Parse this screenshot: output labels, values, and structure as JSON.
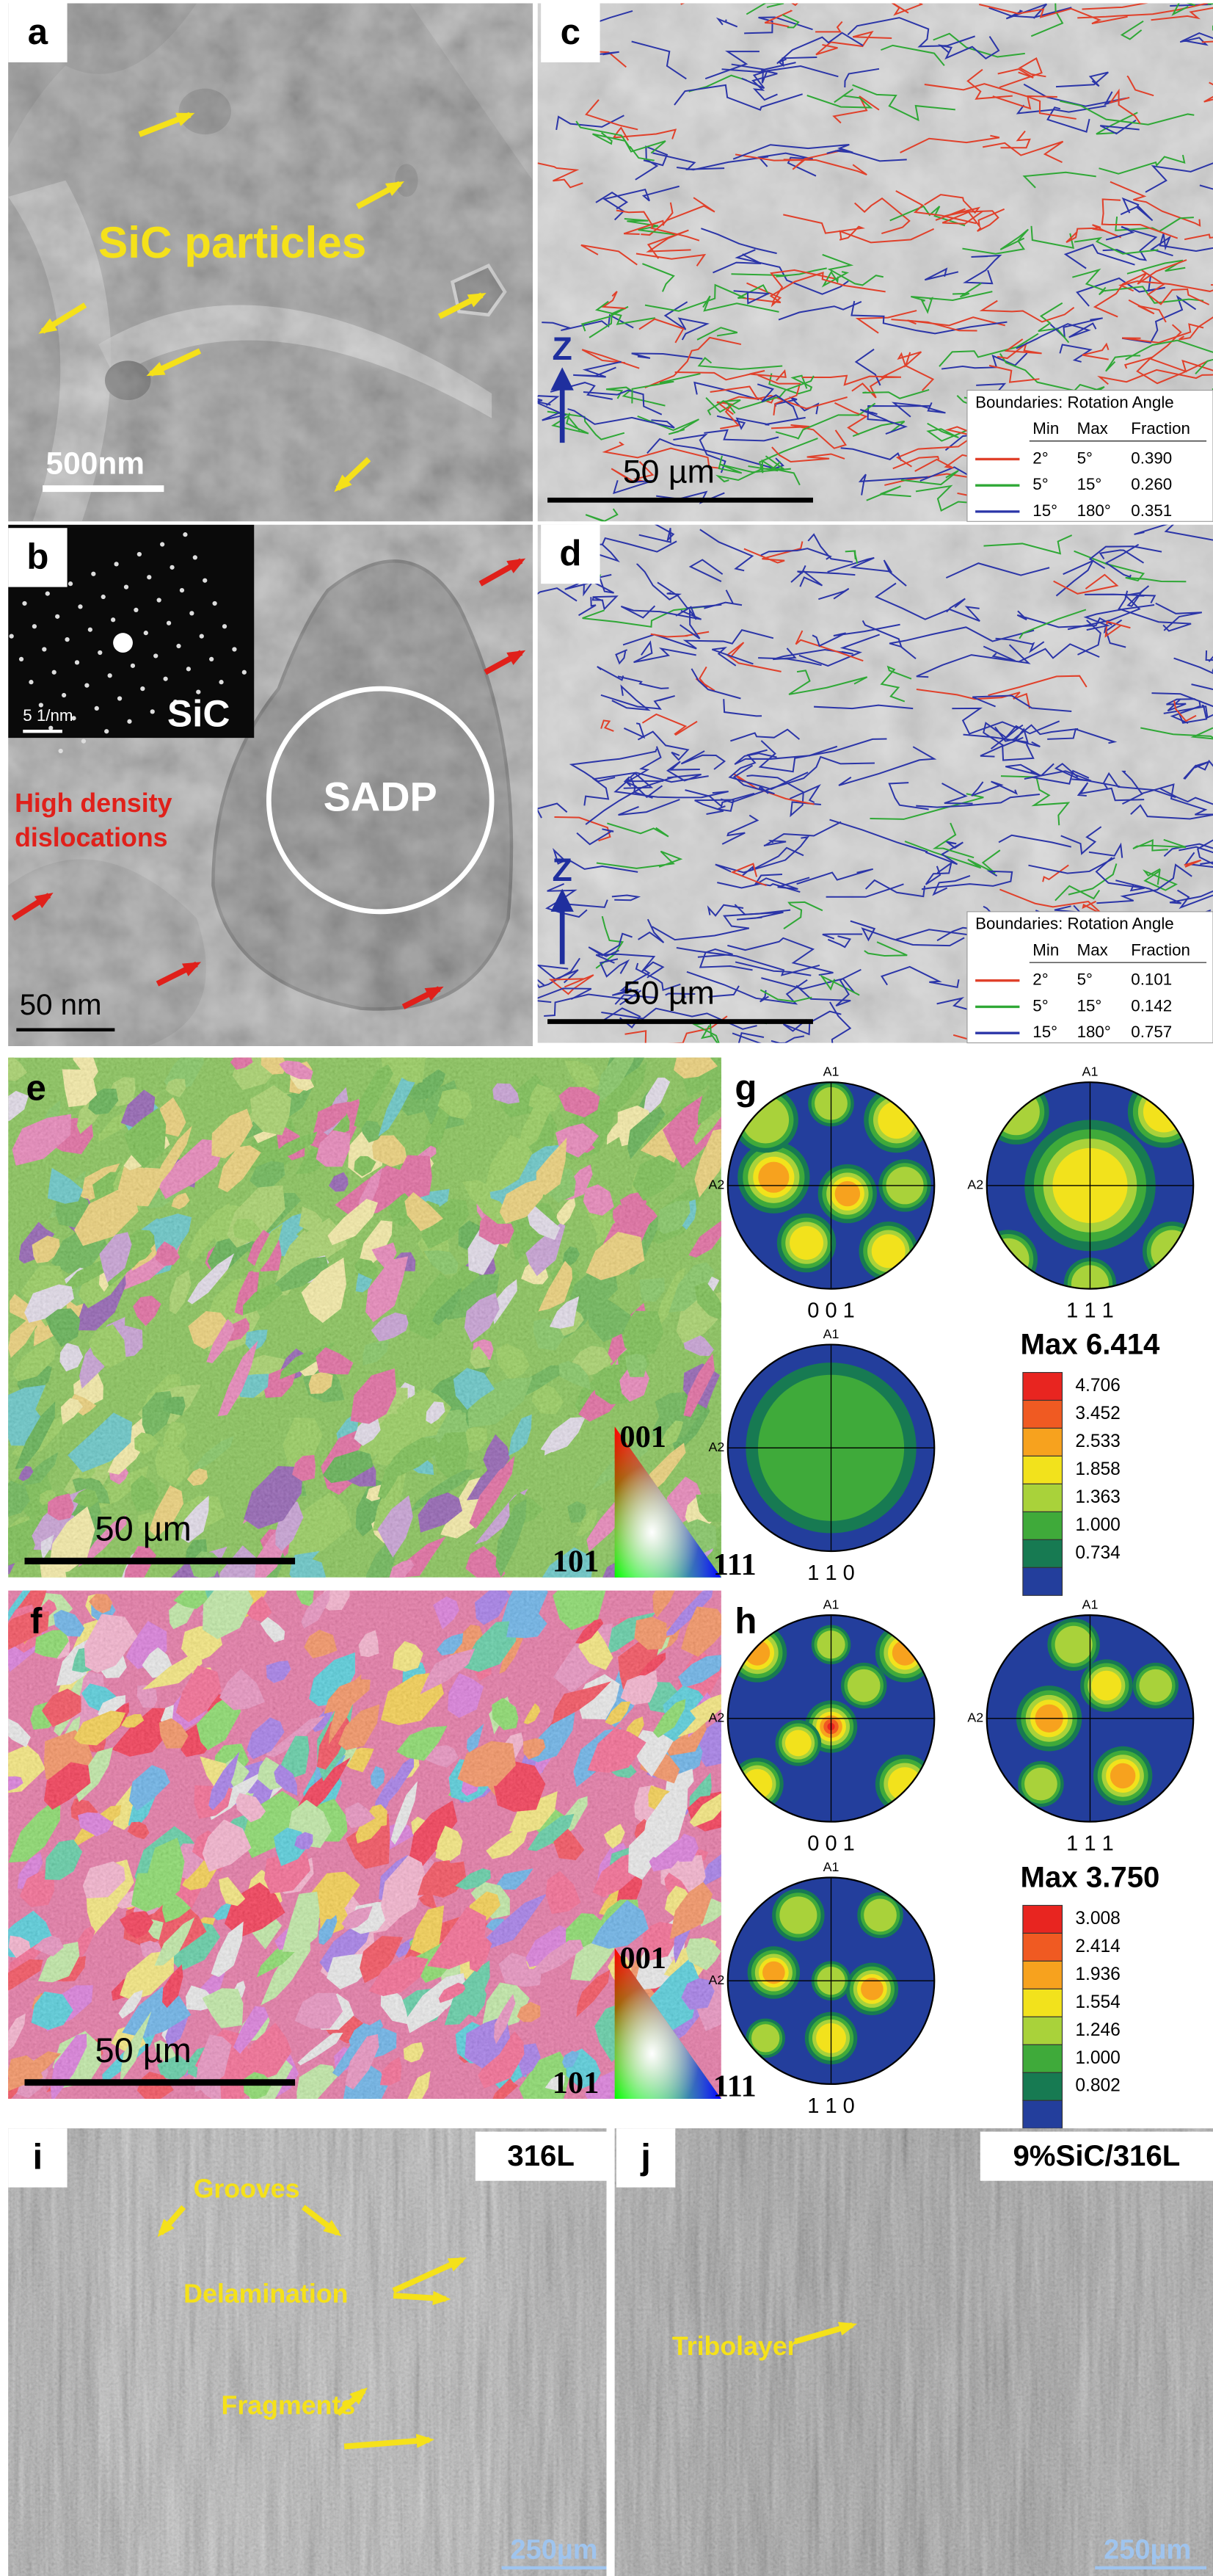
{
  "panels": {
    "a": {
      "label": "a",
      "annotation": "SiC particles",
      "scale_bar": "500nm"
    },
    "b": {
      "label": "b",
      "inset_scale": "5 1/nm",
      "inset_label": "SiC",
      "annotation": [
        "High density",
        "dislocations"
      ],
      "circle_label": "SADP",
      "scale_bar": "50 nm"
    },
    "c": {
      "label": "c",
      "axis": "Z",
      "scale_bar": "50 µm",
      "legend": {
        "title": "Boundaries: Rotation Angle",
        "header": [
          "Min",
          "Max",
          "Fraction"
        ],
        "rows": [
          [
            "2°",
            "5°",
            "0.390"
          ],
          [
            "5°",
            "15°",
            "0.260"
          ],
          [
            "15°",
            "180°",
            "0.351"
          ]
        ]
      }
    },
    "d": {
      "label": "d",
      "axis": "Z",
      "scale_bar": "50 µm",
      "legend": {
        "title": "Boundaries: Rotation Angle",
        "header": [
          "Min",
          "Max",
          "Fraction"
        ],
        "rows": [
          [
            "2°",
            "5°",
            "0.101"
          ],
          [
            "5°",
            "15°",
            "0.142"
          ],
          [
            "15°",
            "180°",
            "0.757"
          ]
        ]
      }
    },
    "e": {
      "label": "e",
      "scale_bar": "50 µm",
      "key": [
        "001",
        "101",
        "111"
      ]
    },
    "g": {
      "label": "g",
      "poles": [
        {
          "top": "A1",
          "left": "A2",
          "caption": "0 0 1"
        },
        {
          "top": "A1",
          "left": "A2",
          "caption": "1 1 1"
        },
        {
          "top": "A1",
          "left": "A2",
          "caption": "1 1 0"
        }
      ],
      "max": "Max 6.414",
      "scale": [
        "4.706",
        "3.452",
        "2.533",
        "1.858",
        "1.363",
        "1.000",
        "0.734"
      ]
    },
    "f": {
      "label": "f",
      "scale_bar": "50 µm",
      "key": [
        "001",
        "101",
        "111"
      ]
    },
    "h": {
      "label": "h",
      "poles": [
        {
          "top": "A1",
          "left": "A2",
          "caption": "0 0 1"
        },
        {
          "top": "A1",
          "left": "A2",
          "caption": "1 1 1"
        },
        {
          "top": "A1",
          "left": "A2",
          "caption": "1 1 0"
        }
      ],
      "max": "Max 3.750",
      "scale": [
        "3.008",
        "2.414",
        "1.936",
        "1.554",
        "1.246",
        "1.000",
        "0.802"
      ]
    },
    "i": {
      "label": "i",
      "tag": "316L",
      "annotations": [
        "Grooves",
        "Delamination",
        "Fragments"
      ],
      "scale_bar": "250µm"
    },
    "j": {
      "label": "j",
      "tag": "9%SiC/316L",
      "annotations": [
        "Tribolayer"
      ],
      "scale_bar": "250µm"
    }
  }
}
